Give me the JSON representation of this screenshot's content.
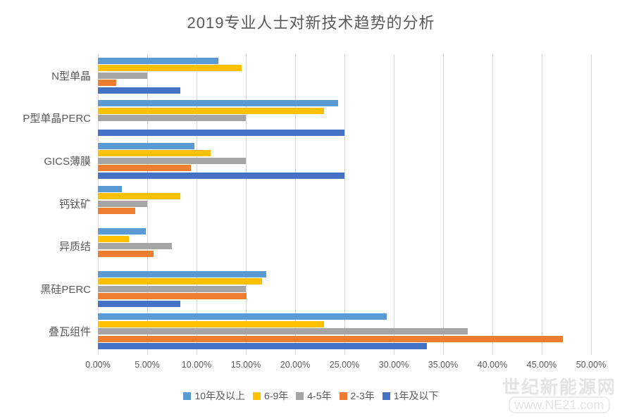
{
  "title": "2019专业人士对新技术趋势的分析",
  "watermark": {
    "line1": "世纪新能源网",
    "line2": "www.NE21.com"
  },
  "chart_data": {
    "type": "bar",
    "orientation": "horizontal",
    "title": "2019专业人士对新技术趋势的分析",
    "categories": [
      "N型单晶",
      "P型单晶PERC",
      "GICS薄膜",
      "钙钛矿",
      "异质结",
      "黑硅PERC",
      "叠瓦组件"
    ],
    "series": [
      {
        "name": "10年及以上",
        "color": "#5B9BD5",
        "values": [
          12.2,
          24.39,
          9.76,
          2.44,
          4.88,
          17.07,
          29.27
        ]
      },
      {
        "name": "6-9年",
        "color": "#FFC000",
        "values": [
          14.58,
          22.92,
          11.46,
          8.33,
          3.13,
          16.67,
          22.92
        ]
      },
      {
        "name": "4-5年",
        "color": "#A5A5A5",
        "values": [
          5.0,
          15.0,
          15.0,
          5.0,
          7.5,
          15.0,
          37.5
        ]
      },
      {
        "name": "2-3年",
        "color": "#ED7D31",
        "values": [
          1.89,
          0.0,
          9.43,
          3.77,
          5.66,
          15.09,
          47.17
        ]
      },
      {
        "name": "1年及以下",
        "color": "#4472C4",
        "values": [
          8.33,
          25.0,
          25.0,
          0.0,
          0.0,
          8.33,
          33.33
        ]
      }
    ],
    "xlabel": "",
    "ylabel": "",
    "xlim": [
      0,
      50
    ],
    "x_ticks": [
      "0.00%",
      "5.00%",
      "10.00%",
      "15.00%",
      "20.00%",
      "25.00%",
      "30.00%",
      "35.00%",
      "40.00%",
      "45.00%",
      "50.00%"
    ],
    "grid": "vertical",
    "legend_position": "bottom",
    "colors": {
      "text": "#595959",
      "gridline": "#D6D6D6",
      "background": "#FFFFFF",
      "watermark": "#E4E4E4"
    }
  }
}
